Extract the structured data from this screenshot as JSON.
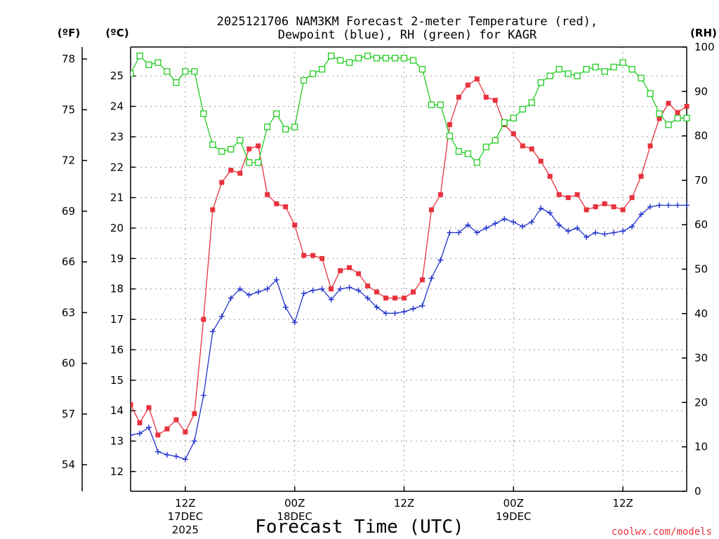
{
  "chart_data": {
    "type": "line",
    "title_line1": "2025121706 NAM3KM Forecast 2-meter Temperature (red),",
    "title_line2": "Dewpoint (blue), RH (green) for KAGR",
    "xlabel": "Forecast Time (UTC)",
    "credit": "coolwx.com/models",
    "units": {
      "fahrenheit": "(ºF)",
      "celsius": "(ºC)",
      "rh": "(RH)"
    },
    "x_range_hours": [
      0,
      61
    ],
    "y_left_c_range": [
      11.35,
      25.95
    ],
    "y_right_rh_range": [
      0,
      100
    ],
    "grid": true,
    "x_ticks": [
      {
        "hour": 6,
        "label": "12Z",
        "label2": "17DEC",
        "label3": "2025"
      },
      {
        "hour": 18,
        "label": "00Z",
        "label2": "18DEC",
        "label3": ""
      },
      {
        "hour": 30,
        "label": "12Z",
        "label2": "",
        "label3": ""
      },
      {
        "hour": 42,
        "label": "00Z",
        "label2": "19DEC",
        "label3": ""
      },
      {
        "hour": 54,
        "label": "12Z",
        "label2": "",
        "label3": ""
      }
    ],
    "celsius_ticks": [
      12,
      13,
      14,
      15,
      16,
      17,
      18,
      19,
      20,
      21,
      22,
      23,
      24,
      25
    ],
    "fahrenheit_ticks": [
      54,
      57,
      60,
      63,
      66,
      69,
      72,
      75,
      78
    ],
    "rh_ticks": [
      0,
      10,
      20,
      30,
      40,
      50,
      60,
      70,
      80,
      90,
      100
    ],
    "series": [
      {
        "name": "Temperature",
        "color": "#e8323c",
        "marker": "filled-square",
        "unit": "C",
        "x": [
          0,
          1,
          2,
          3,
          4,
          5,
          6,
          7,
          8,
          9,
          10,
          11,
          12,
          13,
          14,
          15,
          16,
          17,
          18,
          19,
          20,
          21,
          22,
          23,
          24,
          25,
          26,
          27,
          28,
          29,
          30,
          31,
          32,
          33,
          34,
          35,
          36,
          37,
          38,
          39,
          40,
          41,
          42,
          43,
          44,
          45,
          46,
          47,
          48,
          49,
          50,
          51,
          52,
          53,
          54,
          55,
          56,
          57,
          58,
          59,
          60,
          61
        ],
        "values": [
          14.2,
          13.6,
          14.1,
          13.2,
          13.4,
          13.7,
          13.3,
          13.9,
          17.0,
          20.6,
          21.5,
          21.9,
          21.8,
          22.6,
          22.7,
          21.1,
          20.8,
          20.7,
          20.1,
          19.1,
          19.1,
          19.0,
          18.0,
          18.6,
          18.7,
          18.5,
          18.1,
          17.9,
          17.7,
          17.7,
          17.7,
          17.9,
          18.3,
          20.6,
          21.1,
          23.4,
          24.3,
          24.7,
          24.9,
          24.3,
          24.2,
          23.4,
          23.1,
          22.7,
          22.6,
          22.2,
          21.7,
          21.1,
          21.0,
          21.1,
          20.6,
          20.7,
          20.8,
          20.7,
          20.6,
          21.0,
          21.7,
          22.7,
          23.6,
          24.1,
          23.8,
          24.0
        ]
      },
      {
        "name": "Dewpoint",
        "color": "#2233cc",
        "marker": "plus",
        "unit": "C",
        "x": [
          0,
          1,
          2,
          3,
          4,
          5,
          6,
          7,
          8,
          9,
          10,
          11,
          12,
          13,
          14,
          15,
          16,
          17,
          18,
          19,
          20,
          21,
          22,
          23,
          24,
          25,
          26,
          27,
          28,
          29,
          30,
          31,
          32,
          33,
          34,
          35,
          36,
          37,
          38,
          39,
          40,
          41,
          42,
          43,
          44,
          45,
          46,
          47,
          48,
          49,
          50,
          51,
          52,
          53,
          54,
          55,
          56,
          57,
          58,
          59,
          60,
          61
        ],
        "values": [
          13.2,
          13.25,
          13.45,
          12.65,
          12.55,
          12.5,
          12.4,
          13.0,
          14.5,
          16.6,
          17.1,
          17.7,
          18.0,
          17.8,
          17.9,
          18.0,
          18.3,
          17.4,
          16.9,
          17.85,
          17.95,
          18.0,
          17.65,
          18.0,
          18.05,
          17.95,
          17.7,
          17.4,
          17.2,
          17.2,
          17.25,
          17.35,
          17.45,
          18.35,
          18.95,
          19.85,
          19.85,
          20.1,
          19.85,
          20.0,
          20.15,
          20.3,
          20.2,
          20.05,
          20.2,
          20.65,
          20.5,
          20.1,
          19.9,
          20.0,
          19.7,
          19.85,
          19.8,
          19.85,
          19.9,
          20.05,
          20.45,
          20.7,
          20.75,
          20.75,
          20.75,
          20.75
        ]
      },
      {
        "name": "RH",
        "color": "#22cc22",
        "marker": "open-square",
        "unit": "%",
        "x": [
          0,
          1,
          2,
          3,
          4,
          5,
          6,
          7,
          8,
          9,
          10,
          11,
          12,
          13,
          14,
          15,
          16,
          17,
          18,
          19,
          20,
          21,
          22,
          23,
          24,
          25,
          26,
          27,
          28,
          29,
          30,
          31,
          32,
          33,
          34,
          35,
          36,
          37,
          38,
          39,
          40,
          41,
          42,
          43,
          44,
          45,
          46,
          47,
          48,
          49,
          50,
          51,
          52,
          53,
          54,
          55,
          56,
          57,
          58,
          59,
          60,
          61
        ],
        "values": [
          94,
          98,
          96,
          96.5,
          94.5,
          92,
          94.5,
          94.5,
          85,
          78,
          76.5,
          77,
          79,
          74,
          74,
          82,
          85,
          81.5,
          82,
          92.5,
          94,
          95,
          98,
          97,
          96.5,
          97.5,
          98,
          97.5,
          97.5,
          97.5,
          97.5,
          97,
          95,
          87,
          87,
          80,
          76.5,
          76,
          74,
          77.5,
          79,
          83,
          84,
          86,
          87.5,
          92,
          93.5,
          95,
          94,
          93.5,
          95,
          95.5,
          94.5,
          95.5,
          96.5,
          95,
          93,
          89.5,
          85,
          82.5,
          84,
          84
        ]
      }
    ]
  }
}
